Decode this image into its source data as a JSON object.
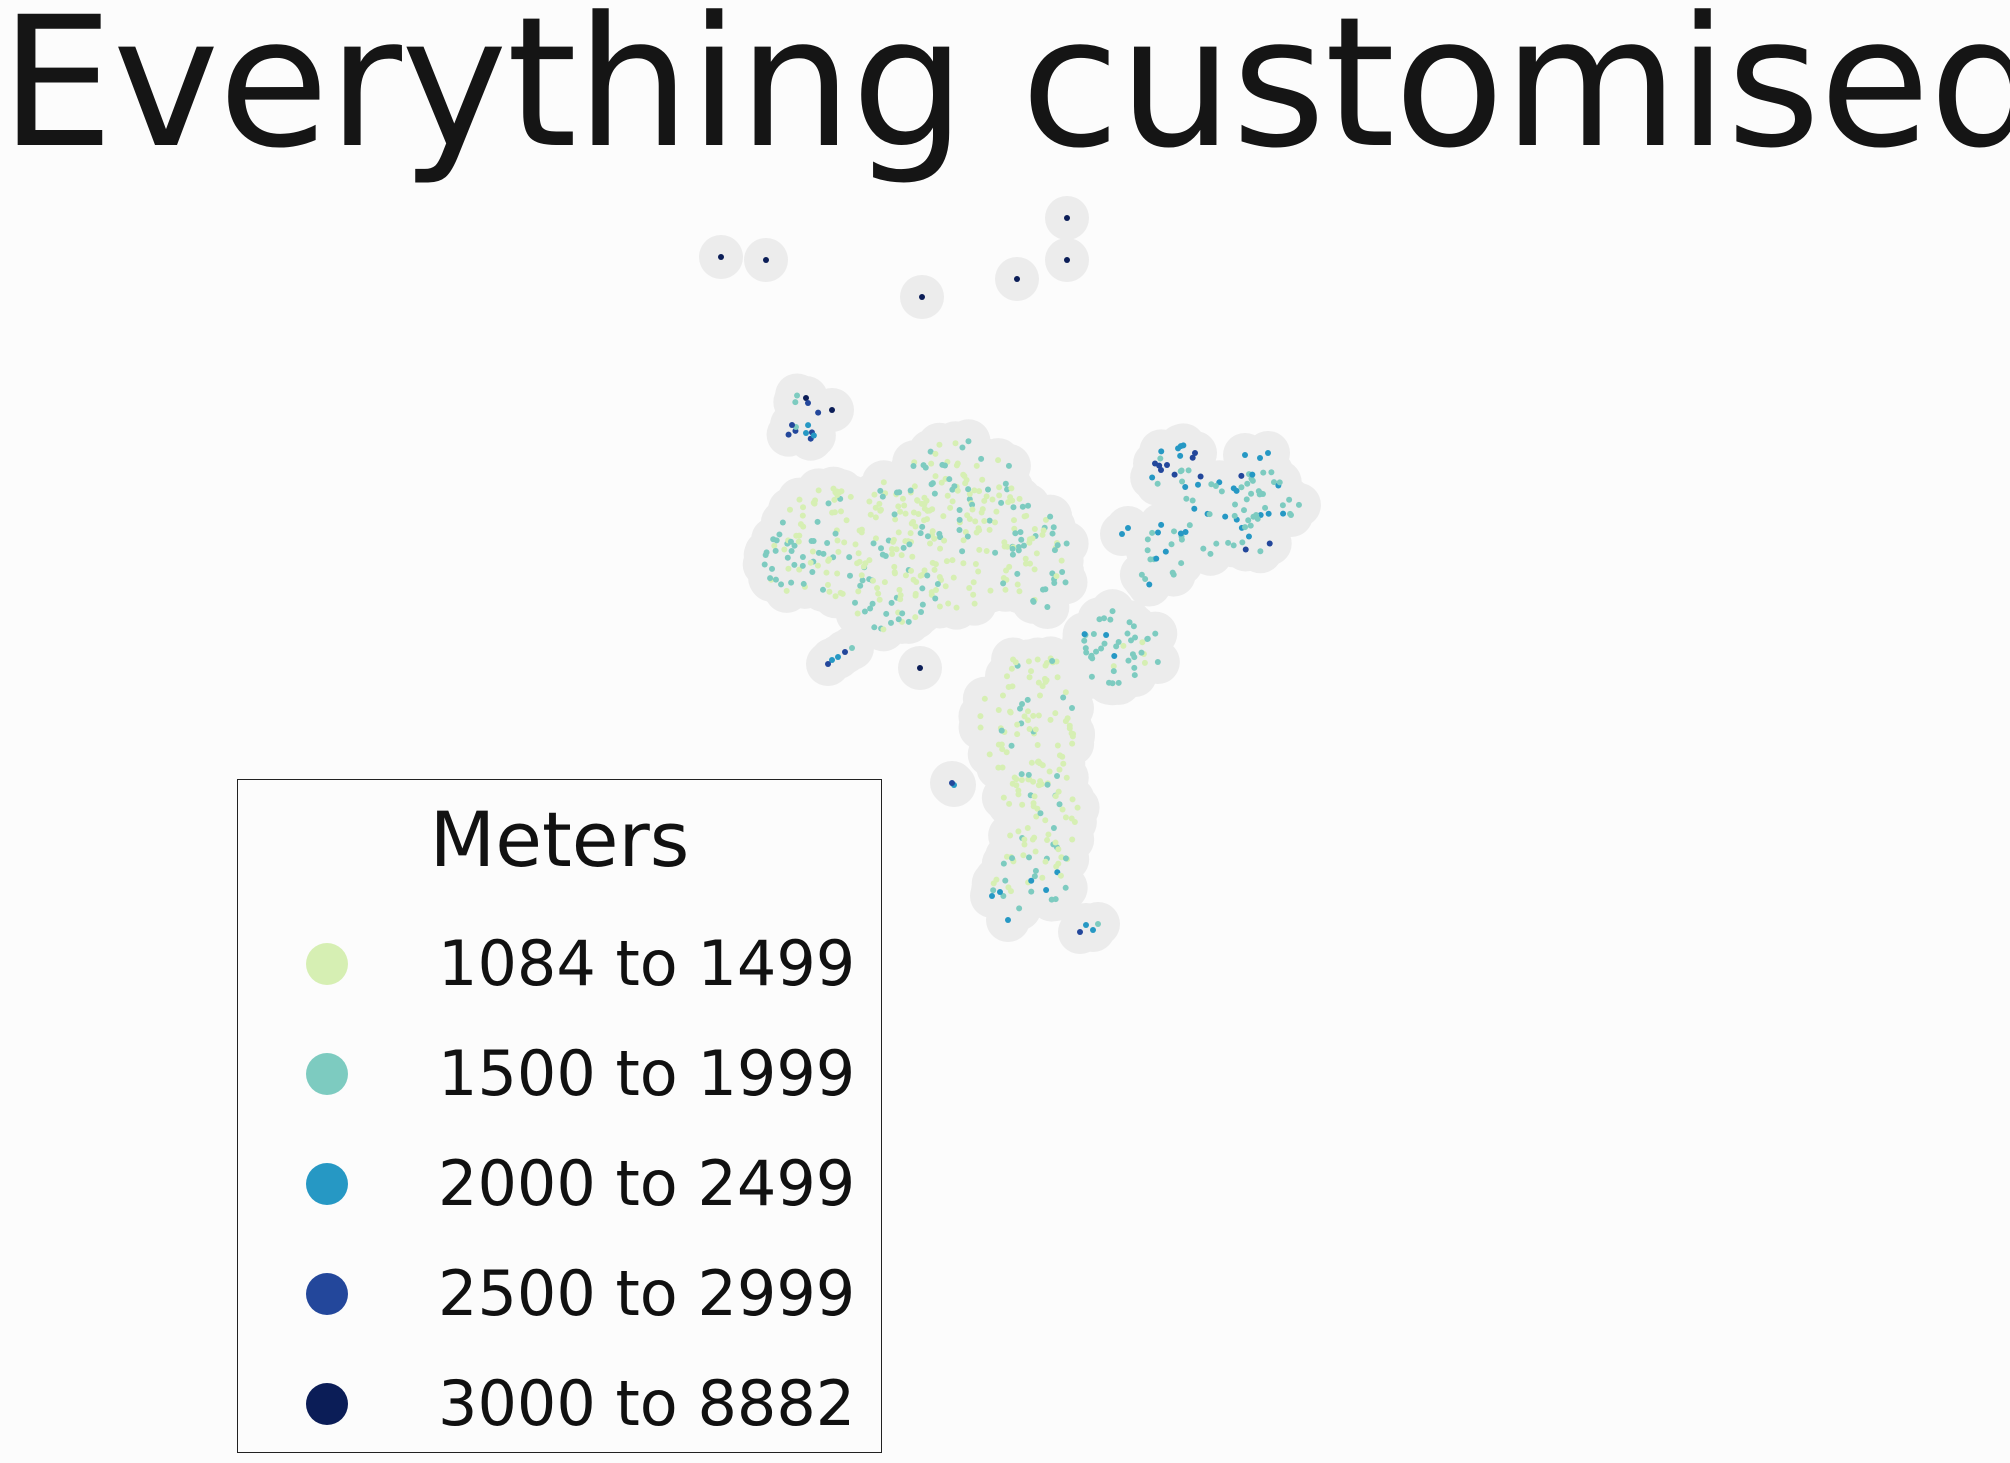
{
  "title": "Everything customised",
  "legend": {
    "title": "Meters",
    "items": [
      {
        "label": "1084 to 1499",
        "color": "#d6efb3"
      },
      {
        "label": "1500 to 1999",
        "color": "#7dcbc0"
      },
      {
        "label": "2000 to 2499",
        "color": "#2698c4"
      },
      {
        "label": "2500 to 2999",
        "color": "#23479b"
      },
      {
        "label": "3000 to 8882",
        "color": "#0b1d57"
      }
    ]
  },
  "map": {
    "type": "point map",
    "halo_color": "#ececec",
    "background": "#fcfcfc"
  }
}
